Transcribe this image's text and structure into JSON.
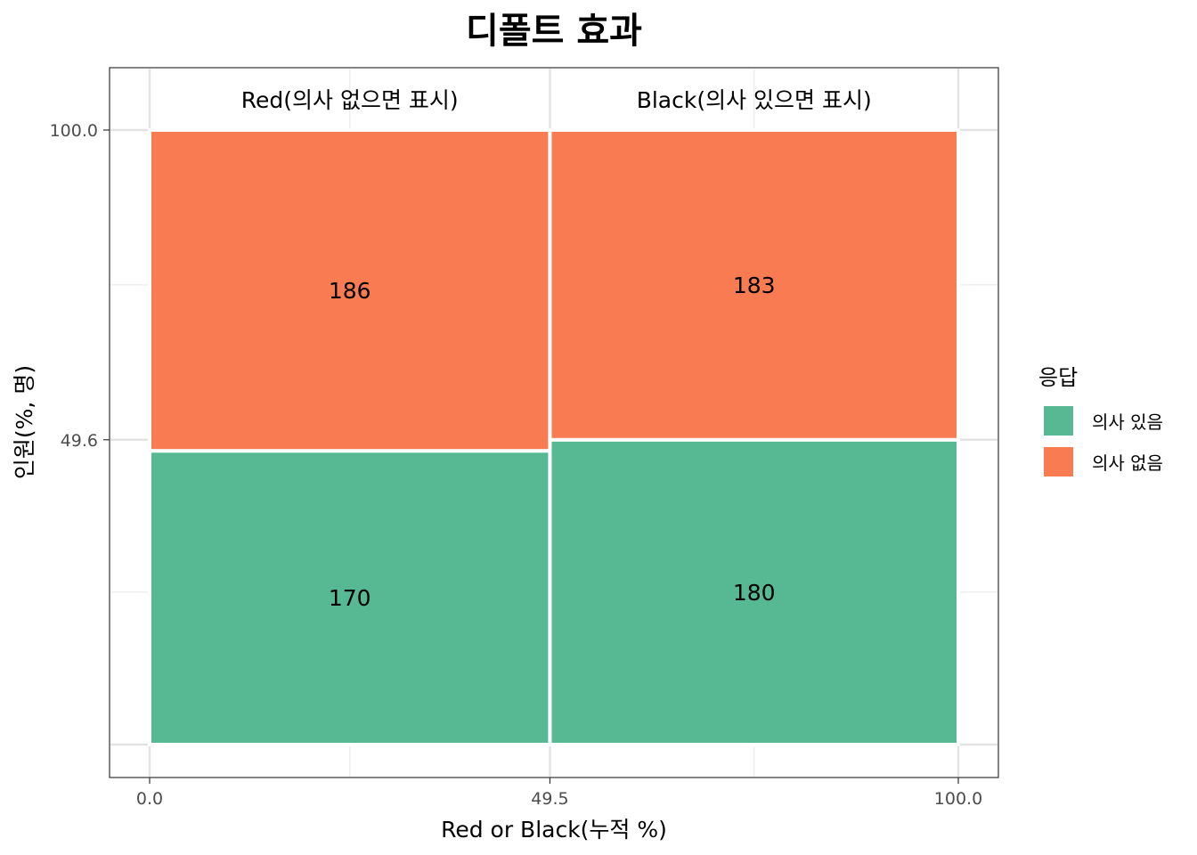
{
  "chart_data": {
    "type": "mosaic",
    "title": "디폴트 효과",
    "xlabel": "Red or Black(누적 %)",
    "ylabel": "인원(%, 명)",
    "xlim": [
      0,
      100
    ],
    "ylim": [
      0,
      100
    ],
    "x_ticks": [
      "0.0",
      "49.5",
      "100.0"
    ],
    "y_ticks": [
      "49.6",
      "100.0"
    ],
    "grid": true,
    "legend": {
      "title": "응답",
      "position": "right",
      "entries": [
        {
          "label": "의사 있음",
          "color": "#57b894"
        },
        {
          "label": "의사 없음",
          "color": "#f87b52"
        }
      ]
    },
    "columns": [
      {
        "label": "Red(의사 없으면 표시)",
        "x_start": 0,
        "x_end": 49.5,
        "segments": [
          {
            "response": "의사 있음",
            "y_start": 0,
            "y_end": 47.8,
            "count": 170,
            "count_label": "170"
          },
          {
            "response": "의사 없음",
            "y_start": 47.8,
            "y_end": 100,
            "count": 186,
            "count_label": "186"
          }
        ]
      },
      {
        "label": "Black(의사 있으면 표시)",
        "x_start": 49.5,
        "x_end": 100,
        "segments": [
          {
            "response": "의사 있음",
            "y_start": 0,
            "y_end": 49.6,
            "count": 180,
            "count_label": "180"
          },
          {
            "response": "의사 없음",
            "y_start": 49.6,
            "y_end": 100,
            "count": 183,
            "count_label": "183"
          }
        ]
      }
    ]
  }
}
